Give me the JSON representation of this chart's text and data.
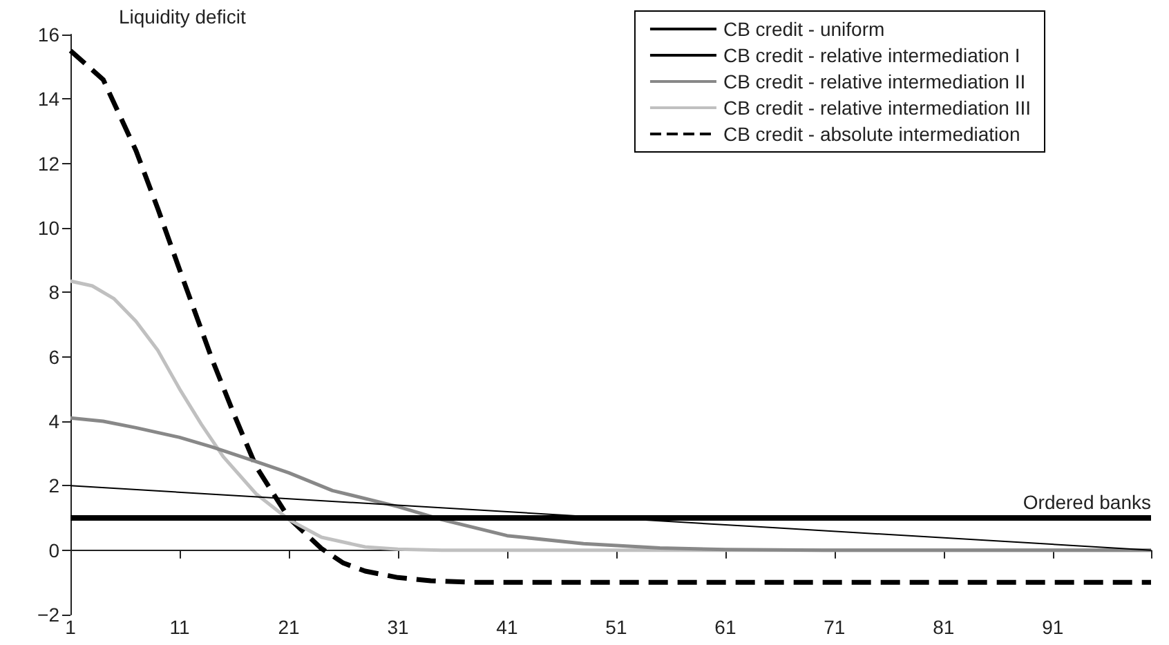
{
  "chart_data": {
    "type": "line",
    "xlabel": "Ordered banks",
    "ylabel": "Liquidity deficit",
    "xlim": [
      1,
      100
    ],
    "xticks": [
      1,
      11,
      21,
      31,
      41,
      51,
      61,
      71,
      81,
      91,
      {
        "value": 100,
        "label": null
      }
    ],
    "ylim": [
      -2,
      16
    ],
    "yticks": [
      -2,
      0,
      2,
      4,
      6,
      8,
      10,
      12,
      14,
      16
    ],
    "legend": "top right",
    "marker": "none",
    "series": [
      {
        "name": "CB credit - uniform",
        "color": "#000000",
        "x": [
          1,
          100
        ],
        "values": [
          1,
          1
        ]
      },
      {
        "name": "CB credit - relative intermediation I",
        "color": "#000000",
        "x": [
          1,
          100
        ],
        "values": [
          2,
          0
        ]
      },
      {
        "name": "CB credit - relative intermediation II",
        "color": "#888888",
        "x": [
          1,
          4,
          7,
          11,
          14,
          18,
          21,
          25,
          31,
          35,
          41,
          48,
          55,
          61,
          70,
          100
        ],
        "values": [
          4.1,
          4.0,
          3.8,
          3.5,
          3.2,
          2.75,
          2.4,
          1.85,
          1.35,
          0.95,
          0.45,
          0.2,
          0.07,
          0.02,
          0,
          0
        ]
      },
      {
        "name": "CB credit - relative intermediation III",
        "color": "#c0c0c0",
        "x": [
          1,
          3,
          5,
          7,
          9,
          11,
          13,
          15,
          18,
          21,
          24,
          28,
          31,
          35,
          100
        ],
        "values": [
          8.35,
          8.2,
          7.8,
          7.1,
          6.2,
          5.0,
          3.9,
          2.9,
          1.75,
          0.95,
          0.4,
          0.1,
          0.03,
          0,
          0
        ]
      },
      {
        "name": "CB credit - absolute intermediation",
        "color": "#000000",
        "line_style": "dashed",
        "x": [
          1,
          4,
          7,
          9,
          11,
          14,
          16,
          18,
          21,
          24,
          26,
          28,
          31,
          34,
          38,
          45,
          100
        ],
        "values": [
          15.5,
          14.6,
          12.4,
          10.6,
          8.7,
          5.9,
          4.2,
          2.6,
          1.0,
          0.05,
          -0.4,
          -0.65,
          -0.85,
          -0.95,
          -1.0,
          -1.0,
          -1.0
        ]
      }
    ]
  }
}
